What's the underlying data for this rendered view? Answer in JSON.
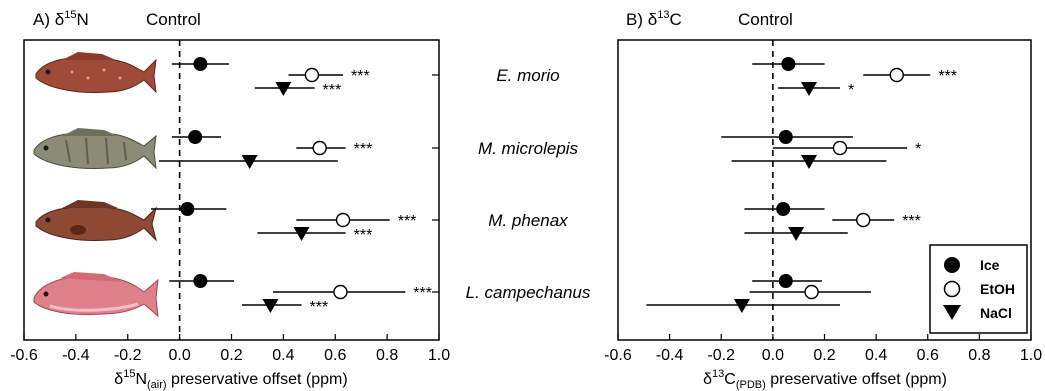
{
  "chart_data": [
    {
      "type": "scatter",
      "panel_label": "A)",
      "title_symbol": "δ",
      "title_superscript": "15",
      "title_element": "N",
      "control_label": "Control",
      "xlabel_prefix": "δ",
      "xlabel_superscript": "15",
      "xlabel_element": "N",
      "xlabel_subscript": "(air)",
      "xlabel_rest": " preservative offset (ppm)",
      "xlim": [
        -0.6,
        1.0
      ],
      "xticks": [
        "-0.6",
        "-0.4",
        "-0.2",
        "0.0",
        "0.2",
        "0.4",
        "0.6",
        "0.8",
        "1.0"
      ],
      "species": [
        "E. morio",
        "M. microlepis",
        "M. phenax",
        "L. campechanus"
      ],
      "series": [
        {
          "name": "Ice",
          "marker": "filled-circle",
          "points": [
            {
              "species": "E. morio",
              "value": 0.08,
              "lo": -0.03,
              "hi": 0.19,
              "sig": ""
            },
            {
              "species": "M. microlepis",
              "value": 0.06,
              "lo": -0.03,
              "hi": 0.16,
              "sig": ""
            },
            {
              "species": "M. phenax",
              "value": 0.03,
              "lo": -0.11,
              "hi": 0.18,
              "sig": ""
            },
            {
              "species": "L. campechanus",
              "value": 0.08,
              "lo": -0.04,
              "hi": 0.21,
              "sig": ""
            }
          ]
        },
        {
          "name": "EtOH",
          "marker": "open-circle",
          "points": [
            {
              "species": "E. morio",
              "value": 0.51,
              "lo": 0.42,
              "hi": 0.63,
              "sig": "***"
            },
            {
              "species": "M. microlepis",
              "value": 0.54,
              "lo": 0.45,
              "hi": 0.64,
              "sig": "***"
            },
            {
              "species": "M. phenax",
              "value": 0.63,
              "lo": 0.45,
              "hi": 0.81,
              "sig": "***"
            },
            {
              "species": "L. campechanus",
              "value": 0.62,
              "lo": 0.36,
              "hi": 0.87,
              "sig": "***"
            }
          ]
        },
        {
          "name": "NaCl",
          "marker": "filled-triangle-down",
          "points": [
            {
              "species": "E. morio",
              "value": 0.4,
              "lo": 0.29,
              "hi": 0.52,
              "sig": "***"
            },
            {
              "species": "M. microlepis",
              "value": 0.27,
              "lo": -0.08,
              "hi": 0.61,
              "sig": ""
            },
            {
              "species": "M. phenax",
              "value": 0.47,
              "lo": 0.3,
              "hi": 0.64,
              "sig": "***"
            },
            {
              "species": "L. campechanus",
              "value": 0.35,
              "lo": 0.24,
              "hi": 0.47,
              "sig": "***"
            }
          ]
        }
      ]
    },
    {
      "type": "scatter",
      "panel_label": "B)",
      "title_symbol": "δ",
      "title_superscript": "13",
      "title_element": "C",
      "control_label": "Control",
      "xlabel_prefix": "δ",
      "xlabel_superscript": "13",
      "xlabel_element": "C",
      "xlabel_subscript": "(PDB)",
      "xlabel_rest": " preservative offset (ppm)",
      "xlim": [
        -0.6,
        1.0
      ],
      "xticks": [
        "-0.6",
        "-0.4",
        "-0.2",
        "0.0",
        "0.2",
        "0.4",
        "0.6",
        "0.8",
        "1.0"
      ],
      "legend_position": "bottom-right",
      "series": [
        {
          "name": "Ice",
          "marker": "filled-circle",
          "points": [
            {
              "species": "E. morio",
              "value": 0.06,
              "lo": -0.08,
              "hi": 0.2,
              "sig": ""
            },
            {
              "species": "M. microlepis",
              "value": 0.05,
              "lo": -0.2,
              "hi": 0.31,
              "sig": ""
            },
            {
              "species": "M. phenax",
              "value": 0.04,
              "lo": -0.11,
              "hi": 0.2,
              "sig": ""
            },
            {
              "species": "L. campechanus",
              "value": 0.05,
              "lo": -0.08,
              "hi": 0.19,
              "sig": ""
            }
          ]
        },
        {
          "name": "EtOH",
          "marker": "open-circle",
          "points": [
            {
              "species": "E. morio",
              "value": 0.48,
              "lo": 0.35,
              "hi": 0.61,
              "sig": "***"
            },
            {
              "species": "M. microlepis",
              "value": 0.26,
              "lo": 0.0,
              "hi": 0.52,
              "sig": "*"
            },
            {
              "species": "M. phenax",
              "value": 0.35,
              "lo": 0.23,
              "hi": 0.47,
              "sig": "***"
            },
            {
              "species": "L. campechanus",
              "value": 0.15,
              "lo": -0.09,
              "hi": 0.38,
              "sig": ""
            }
          ]
        },
        {
          "name": "NaCl",
          "marker": "filled-triangle-down",
          "points": [
            {
              "species": "E. morio",
              "value": 0.14,
              "lo": 0.02,
              "hi": 0.26,
              "sig": "*"
            },
            {
              "species": "M. microlepis",
              "value": 0.14,
              "lo": -0.16,
              "hi": 0.44,
              "sig": ""
            },
            {
              "species": "M. phenax",
              "value": 0.09,
              "lo": -0.11,
              "hi": 0.29,
              "sig": ""
            },
            {
              "species": "L. campechanus",
              "value": -0.12,
              "lo": -0.49,
              "hi": 0.26,
              "sig": ""
            }
          ]
        }
      ]
    }
  ],
  "colors": {
    "ink": "#000000",
    "fish_1_body": "#a04a3a",
    "fish_2_body": "#8a8c78",
    "fish_3_body": "#8c4a34",
    "fish_4_body": "#e0808a"
  },
  "icons": [
    "red-grouper-icon",
    "gag-grouper-icon",
    "scamp-grouper-icon",
    "red-snapper-icon"
  ]
}
